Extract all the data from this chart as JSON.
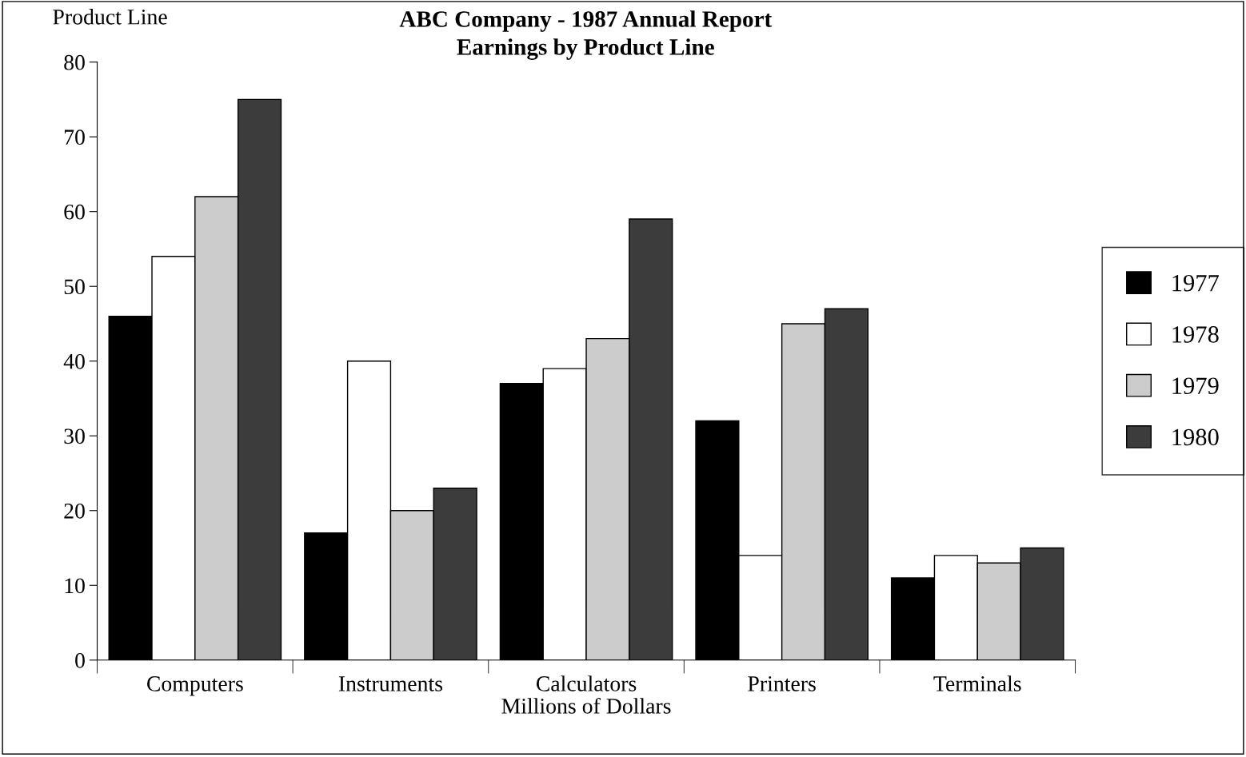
{
  "chart_data": {
    "type": "bar",
    "title": "ABC Company - 1987 Annual Report",
    "subtitle": "Earnings by Product Line",
    "xlabel": "Millions of Dollars",
    "ylabel": "Product Line",
    "categories": [
      "Computers",
      "Instruments",
      "Calculators",
      "Printers",
      "Terminals"
    ],
    "series": [
      {
        "name": "1977",
        "color": "#000000",
        "values": [
          46,
          17,
          37,
          32,
          11
        ]
      },
      {
        "name": "1978",
        "color": "#ffffff",
        "values": [
          54,
          40,
          39,
          14,
          14
        ]
      },
      {
        "name": "1979",
        "color": "#cccccc",
        "values": [
          62,
          20,
          43,
          45,
          13
        ]
      },
      {
        "name": "1980",
        "color": "#3c3c3c",
        "values": [
          75,
          23,
          59,
          47,
          15
        ]
      }
    ],
    "ylim": [
      0,
      80
    ],
    "yticks": [
      0,
      10,
      20,
      30,
      40,
      50,
      60,
      70,
      80
    ],
    "grid": false,
    "legend": "right"
  }
}
